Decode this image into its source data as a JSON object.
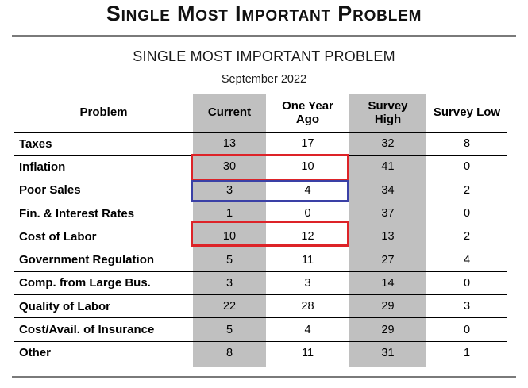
{
  "page": {
    "title": "Single Most Important Problem",
    "subtitle": "SINGLE MOST IMPORTANT PROBLEM",
    "date": "September 2022"
  },
  "table": {
    "columns": [
      "Problem",
      "Current",
      "One Year\nAgo",
      "Survey\nHigh",
      "Survey Low"
    ],
    "rows": [
      {
        "problem": "Taxes",
        "current": "13",
        "one_year_ago": "17",
        "survey_high": "32",
        "survey_low": "8"
      },
      {
        "problem": "Inflation",
        "current": "30",
        "one_year_ago": "10",
        "survey_high": "41",
        "survey_low": "0"
      },
      {
        "problem": "Poor Sales",
        "current": "3",
        "one_year_ago": "4",
        "survey_high": "34",
        "survey_low": "2"
      },
      {
        "problem": "Fin. & Interest Rates",
        "current": "1",
        "one_year_ago": "0",
        "survey_high": "37",
        "survey_low": "0"
      },
      {
        "problem": "Cost of Labor",
        "current": "10",
        "one_year_ago": "12",
        "survey_high": "13",
        "survey_low": "2"
      },
      {
        "problem": "Government Regulation",
        "current": "5",
        "one_year_ago": "11",
        "survey_high": "27",
        "survey_low": "4"
      },
      {
        "problem": "Comp. from Large Bus.",
        "current": "3",
        "one_year_ago": "3",
        "survey_high": "14",
        "survey_low": "0"
      },
      {
        "problem": "Quality of Labor",
        "current": "22",
        "one_year_ago": "28",
        "survey_high": "29",
        "survey_low": "3"
      },
      {
        "problem": "Cost/Avail. of Insurance",
        "current": "5",
        "one_year_ago": "4",
        "survey_high": "29",
        "survey_low": "0"
      },
      {
        "problem": "Other",
        "current": "8",
        "one_year_ago": "11",
        "survey_high": "31",
        "survey_low": "1"
      }
    ]
  },
  "annotations": {
    "boxes": [
      {
        "row": "Inflation",
        "color": "red",
        "cells": [
          "Current",
          "One Year Ago"
        ]
      },
      {
        "row": "Poor Sales",
        "color": "blue",
        "cells": [
          "Current",
          "One Year Ago"
        ]
      },
      {
        "row": "Cost of Labor",
        "color": "red",
        "cells": [
          "Current",
          "One Year Ago"
        ]
      }
    ],
    "red_color": "#dd2328",
    "blue_color": "#3a40a6"
  },
  "colors": {
    "column_shade": "#c0c0c0",
    "divider_rule": "#7a7a7a"
  }
}
